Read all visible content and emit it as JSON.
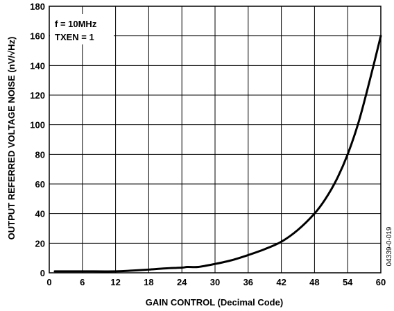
{
  "chart_data": {
    "type": "line",
    "xlabel": "GAIN CONTROL (Decimal Code)",
    "ylabel": "OUTPUT REFERRED VOLTAGE NOISE (nV/√Hz)",
    "xlim": [
      0,
      60
    ],
    "ylim": [
      0,
      180
    ],
    "xticks": [
      "0",
      "6",
      "12",
      "18",
      "24",
      "30",
      "36",
      "42",
      "48",
      "54",
      "60"
    ],
    "yticks": [
      "0",
      "20",
      "40",
      "60",
      "80",
      "100",
      "120",
      "140",
      "160",
      "180"
    ],
    "grid": true,
    "annotations": [
      "f = 10MHz",
      "TXEN = 1"
    ],
    "figure_id": "04339-0-019",
    "series": [
      {
        "color": "#000000",
        "x": [
          1,
          6,
          12,
          15,
          18,
          21,
          24,
          25,
          27,
          30,
          33,
          36,
          39,
          42,
          45,
          48,
          50,
          52,
          54,
          56,
          58,
          60
        ],
        "y": [
          1,
          1,
          1,
          1.5,
          2.2,
          3,
          3.5,
          4,
          4,
          6,
          8.5,
          12,
          16,
          21,
          29,
          40,
          50,
          63,
          80,
          102,
          130,
          160
        ]
      }
    ]
  }
}
